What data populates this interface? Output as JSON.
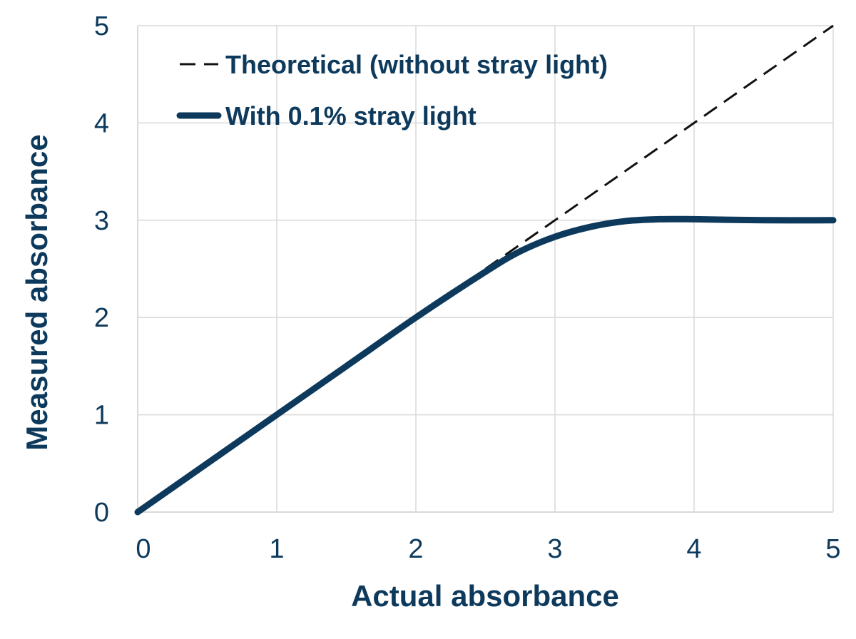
{
  "chart_data": {
    "type": "line",
    "title": "",
    "xlabel": "Actual absorbance",
    "ylabel": "Measured absorbance",
    "xlim": [
      0,
      5
    ],
    "ylim": [
      0,
      5
    ],
    "x_ticks": [
      "0",
      "1",
      "2",
      "3",
      "4",
      "5"
    ],
    "y_ticks": [
      "0",
      "1",
      "2",
      "3",
      "4",
      "5"
    ],
    "grid": true,
    "legend_position": "top-left",
    "series": [
      {
        "name": "Theoretical (without stray light)",
        "style": "dashed",
        "color": "#111111",
        "x": [
          2.5,
          3,
          3.5,
          4,
          4.5,
          5
        ],
        "y": [
          2.5,
          3,
          3.5,
          4,
          4.5,
          5
        ]
      },
      {
        "name": "With 0.1% stray light",
        "style": "solid",
        "color": "#0d3a5c",
        "x": [
          0,
          0.5,
          1,
          1.5,
          2,
          2.5,
          2.75,
          3,
          3.25,
          3.5,
          3.75,
          4,
          4.5,
          5
        ],
        "y": [
          0,
          0.5,
          1,
          1.5,
          2,
          2.47,
          2.68,
          2.83,
          2.93,
          2.99,
          3.01,
          3.01,
          3.0,
          3.0
        ]
      }
    ]
  }
}
